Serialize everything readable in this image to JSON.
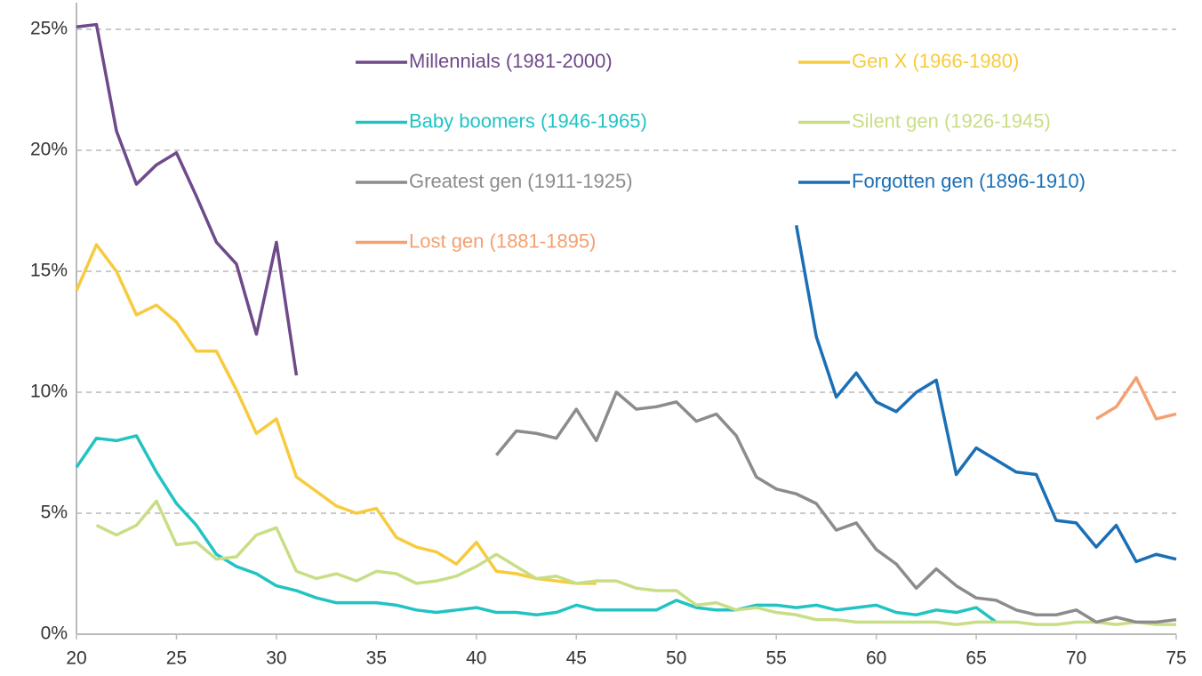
{
  "chart_data": {
    "type": "line",
    "x": [
      20,
      21,
      22,
      23,
      24,
      25,
      26,
      27,
      28,
      29,
      30,
      31,
      32,
      33,
      34,
      35,
      36,
      37,
      38,
      39,
      40,
      41,
      42,
      43,
      44,
      45,
      46,
      47,
      48,
      49,
      50,
      51,
      52,
      53,
      54,
      55,
      56,
      57,
      58,
      59,
      60,
      61,
      62,
      63,
      64,
      65,
      66,
      67,
      68,
      69,
      70,
      71,
      72,
      73,
      74,
      75
    ],
    "series": [
      {
        "name": "Millennials (1981-2000)",
        "color": "#6f4a8a",
        "values": [
          25.1,
          25.2,
          20.8,
          18.6,
          19.4,
          19.9,
          18.1,
          16.2,
          15.3,
          12.4,
          16.2,
          10.7,
          null,
          null,
          null,
          null,
          null,
          null,
          null,
          null,
          null,
          null,
          null,
          null,
          null,
          null,
          null,
          null,
          null,
          null,
          null,
          null,
          null,
          null,
          null,
          null,
          null,
          null,
          null,
          null,
          null,
          null,
          null,
          null,
          null,
          null,
          null,
          null,
          null,
          null,
          null,
          null,
          null,
          null,
          null,
          null
        ]
      },
      {
        "name": "Gen X (1966-1980)",
        "color": "#f7cb3d",
        "values": [
          14.2,
          16.1,
          15.0,
          13.2,
          13.6,
          12.9,
          11.7,
          11.7,
          10.1,
          8.3,
          8.9,
          6.5,
          5.9,
          5.3,
          5.0,
          5.2,
          4.0,
          3.6,
          3.4,
          2.9,
          3.8,
          2.6,
          2.5,
          2.3,
          2.2,
          2.1,
          2.1,
          null,
          null,
          null,
          null,
          null,
          null,
          null,
          null,
          null,
          null,
          null,
          null,
          null,
          null,
          null,
          null,
          null,
          null,
          null,
          null,
          null,
          null,
          null,
          null,
          null,
          null,
          null,
          null,
          null
        ]
      },
      {
        "name": "Baby boomers (1946-1965)",
        "color": "#22c3c3",
        "values": [
          6.9,
          8.1,
          8.0,
          8.2,
          6.7,
          5.4,
          4.5,
          3.3,
          2.8,
          2.5,
          2.0,
          1.8,
          1.5,
          1.3,
          1.3,
          1.3,
          1.2,
          1.0,
          0.9,
          1.0,
          1.1,
          0.9,
          0.9,
          0.8,
          0.9,
          1.2,
          1.0,
          1.0,
          1.0,
          1.0,
          1.4,
          1.1,
          1.0,
          1.0,
          1.2,
          1.2,
          1.1,
          1.2,
          1.0,
          1.1,
          1.2,
          0.9,
          0.8,
          1.0,
          0.9,
          1.1,
          0.5,
          null,
          null,
          null,
          null,
          null,
          null,
          null,
          null,
          null
        ]
      },
      {
        "name": "Silent gen (1926-1945)",
        "color": "#c8de86",
        "values": [
          null,
          4.5,
          4.1,
          4.5,
          5.5,
          3.7,
          3.8,
          3.1,
          3.2,
          4.1,
          4.4,
          2.6,
          2.3,
          2.5,
          2.2,
          2.6,
          2.5,
          2.1,
          2.2,
          2.4,
          2.8,
          3.3,
          2.8,
          2.3,
          2.4,
          2.1,
          2.2,
          2.2,
          1.9,
          1.8,
          1.8,
          1.2,
          1.3,
          1.0,
          1.1,
          0.9,
          0.8,
          0.6,
          0.6,
          0.5,
          0.5,
          0.5,
          0.5,
          0.5,
          0.4,
          0.5,
          0.5,
          0.5,
          0.4,
          0.4,
          0.5,
          0.5,
          0.4,
          0.5,
          0.4,
          0.4
        ]
      },
      {
        "name": "Greatest gen (1911-1925)",
        "color": "#8c8c8c",
        "values": [
          null,
          null,
          null,
          null,
          null,
          null,
          null,
          null,
          null,
          null,
          null,
          null,
          null,
          null,
          null,
          null,
          null,
          null,
          null,
          null,
          null,
          7.4,
          8.4,
          8.3,
          8.1,
          9.3,
          8.0,
          10.0,
          9.3,
          9.4,
          9.6,
          8.8,
          9.1,
          8.2,
          6.5,
          6.0,
          5.8,
          5.4,
          4.3,
          4.6,
          3.5,
          2.9,
          1.9,
          2.7,
          2.0,
          1.5,
          1.4,
          1.0,
          0.8,
          0.8,
          1.0,
          0.5,
          0.7,
          0.5,
          0.5,
          0.6
        ]
      },
      {
        "name": "Forgotten gen (1896-1910)",
        "color": "#1a6fb5",
        "values": [
          null,
          null,
          null,
          null,
          null,
          null,
          null,
          null,
          null,
          null,
          null,
          null,
          null,
          null,
          null,
          null,
          null,
          null,
          null,
          null,
          null,
          null,
          null,
          null,
          null,
          null,
          null,
          null,
          null,
          null,
          null,
          null,
          null,
          null,
          null,
          null,
          16.9,
          12.3,
          9.8,
          10.8,
          9.6,
          9.2,
          10.0,
          10.5,
          6.6,
          7.7,
          7.2,
          6.7,
          6.6,
          4.7,
          4.6,
          3.6,
          4.5,
          3.0,
          3.3,
          3.1
        ]
      },
      {
        "name": "Lost gen (1881-1895)",
        "color": "#f4a070",
        "values": [
          null,
          null,
          null,
          null,
          null,
          null,
          null,
          null,
          null,
          null,
          null,
          null,
          null,
          null,
          null,
          null,
          null,
          null,
          null,
          null,
          null,
          null,
          null,
          null,
          null,
          null,
          null,
          null,
          null,
          null,
          null,
          null,
          null,
          null,
          null,
          null,
          null,
          null,
          null,
          null,
          null,
          null,
          null,
          null,
          null,
          null,
          null,
          null,
          null,
          null,
          null,
          8.9,
          9.4,
          10.6,
          8.9,
          9.1
        ]
      }
    ],
    "xlim": [
      20,
      75
    ],
    "xticks": [
      20,
      25,
      30,
      35,
      40,
      45,
      50,
      55,
      60,
      65,
      70,
      75
    ],
    "ylim": [
      0,
      25
    ],
    "yticks": [
      {
        "value": 0,
        "label": "0%"
      },
      {
        "value": 5,
        "label": "5%"
      },
      {
        "value": 10,
        "label": "10%"
      },
      {
        "value": 15,
        "label": "15%"
      },
      {
        "value": 20,
        "label": "20%"
      },
      {
        "value": 25,
        "label": "25%"
      }
    ],
    "grid": true
  }
}
